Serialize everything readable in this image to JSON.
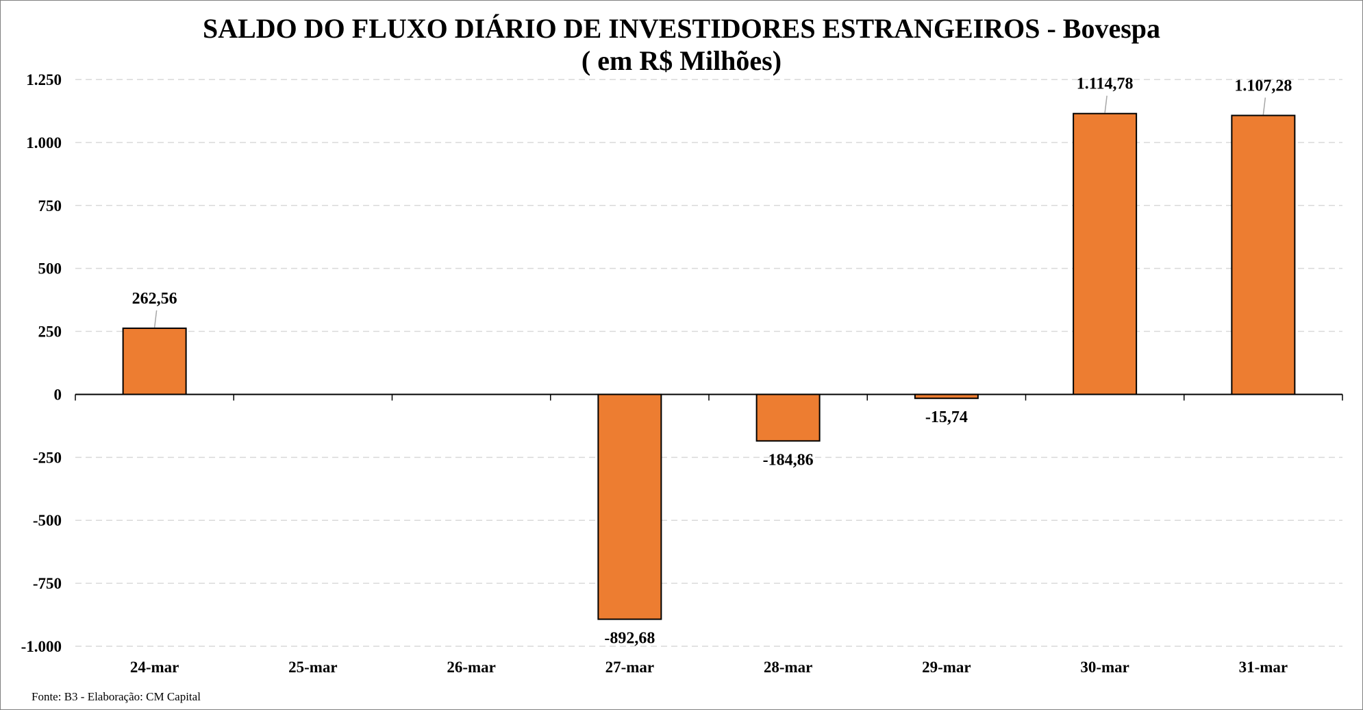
{
  "chart_data": {
    "type": "bar",
    "title": "SALDO DO FLUXO DIÁRIO DE INVESTIDORES ESTRANGEIROS - Bovespa",
    "subtitle": "( em R$ Milhões)",
    "categories": [
      "24-mar",
      "25-mar",
      "26-mar",
      "27-mar",
      "28-mar",
      "29-mar",
      "30-mar",
      "31-mar"
    ],
    "values": [
      262.56,
      null,
      null,
      -892.68,
      -184.86,
      -15.74,
      1114.78,
      1107.28
    ],
    "data_labels": [
      "262,56",
      "",
      "",
      "-892,68",
      "-184,86",
      "-15,74",
      "1.114,78",
      "1.107,28"
    ],
    "ylim": [
      -1000,
      1250
    ],
    "yticks": [
      1250,
      1000,
      750,
      500,
      250,
      0,
      -250,
      -500,
      -750,
      -1000
    ],
    "ytick_labels": [
      "1.250",
      "1.000",
      "750",
      "500",
      "250",
      "0",
      "-250",
      "-500",
      "-750",
      "-1.000"
    ],
    "xlabel": "",
    "ylabel": "",
    "grid": true,
    "legend": "none",
    "colors": {
      "bar_fill": "#ED7D31",
      "bar_stroke": "#000000",
      "grid": "#d9d9d9",
      "axis": "#000000",
      "leader_line": "#a6a6a6"
    }
  },
  "source": "Fonte: B3 - Elaboração: CM Capital"
}
